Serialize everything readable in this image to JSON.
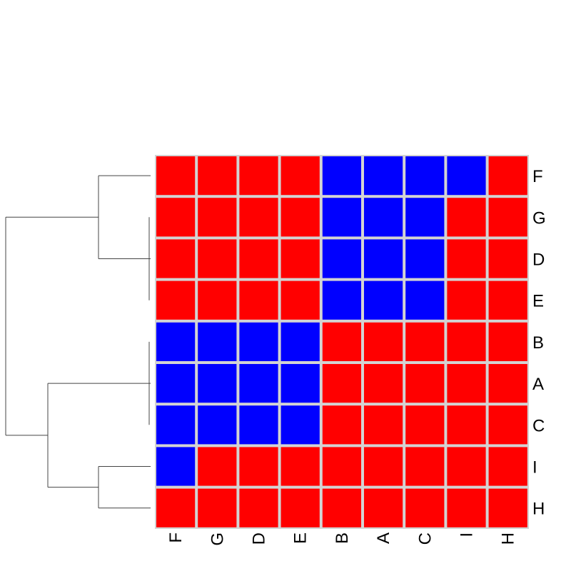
{
  "chart_data": {
    "type": "heatmap",
    "title": "",
    "xlabel": "",
    "ylabel": "",
    "rows": [
      "F",
      "G",
      "D",
      "E",
      "B",
      "A",
      "C",
      "I",
      "H"
    ],
    "columns": [
      "F",
      "G",
      "D",
      "E",
      "B",
      "A",
      "C",
      "I",
      "H"
    ],
    "values": [
      [
        1,
        1,
        1,
        1,
        0,
        0,
        0,
        0,
        1
      ],
      [
        1,
        1,
        1,
        1,
        0,
        0,
        0,
        1,
        1
      ],
      [
        1,
        1,
        1,
        1,
        0,
        0,
        0,
        1,
        1
      ],
      [
        1,
        1,
        1,
        1,
        0,
        0,
        0,
        1,
        1
      ],
      [
        0,
        0,
        0,
        0,
        1,
        1,
        1,
        1,
        1
      ],
      [
        0,
        0,
        0,
        0,
        1,
        1,
        1,
        1,
        1
      ],
      [
        0,
        0,
        0,
        0,
        1,
        1,
        1,
        1,
        1
      ],
      [
        0,
        1,
        1,
        1,
        1,
        1,
        1,
        1,
        1
      ],
      [
        1,
        1,
        1,
        1,
        1,
        1,
        1,
        1,
        1
      ]
    ],
    "colors": {
      "0": "#0000ff",
      "1": "#ff0000",
      "grid": "#d3d3d3",
      "dendrogram": "#444444"
    },
    "row_dendrogram": true,
    "column_dendrogram": false
  }
}
